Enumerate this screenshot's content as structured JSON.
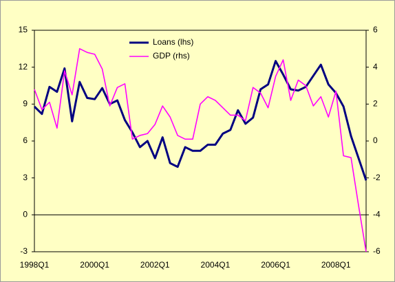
{
  "chart_data": {
    "type": "line",
    "categories": [
      "1998Q1",
      null,
      null,
      null,
      null,
      null,
      null,
      null,
      "2000Q1",
      null,
      null,
      null,
      null,
      null,
      null,
      null,
      "2002Q1",
      null,
      null,
      null,
      null,
      null,
      null,
      null,
      "2004Q1",
      null,
      null,
      null,
      null,
      null,
      null,
      null,
      "2006Q1",
      null,
      null,
      null,
      null,
      null,
      null,
      null,
      "2008Q1",
      null,
      null,
      null,
      null
    ],
    "series": [
      {
        "name": "Loans (lhs)",
        "color": "#000080",
        "axis": "y",
        "values": [
          8.8,
          8.2,
          10.4,
          10.0,
          11.9,
          7.6,
          10.8,
          9.5,
          9.4,
          10.3,
          9.0,
          9.3,
          7.7,
          6.7,
          5.5,
          6.0,
          4.6,
          6.3,
          4.2,
          3.9,
          5.5,
          5.2,
          5.2,
          5.7,
          5.7,
          6.6,
          6.9,
          8.5,
          7.4,
          7.9,
          10.2,
          10.6,
          12.5,
          11.4,
          10.2,
          10.1,
          10.4,
          11.3,
          12.2,
          10.6,
          9.9,
          8.8,
          6.4,
          4.6,
          2.8
        ]
      },
      {
        "name": "GDP (rhs)",
        "color": "#ff00ff",
        "axis": "y2",
        "values": [
          2.8,
          1.7,
          2.1,
          0.7,
          3.8,
          2.5,
          5.0,
          4.8,
          4.7,
          3.9,
          1.9,
          2.9,
          3.1,
          0.1,
          0.3,
          0.4,
          0.9,
          1.9,
          1.3,
          0.3,
          0.1,
          0.1,
          2.0,
          2.4,
          2.2,
          1.8,
          1.4,
          1.4,
          1.1,
          2.9,
          2.6,
          1.8,
          3.5,
          4.4,
          2.2,
          3.3,
          3.0,
          1.9,
          2.4,
          1.3,
          2.7,
          -0.8,
          -0.9,
          -3.5,
          -6.0
        ]
      }
    ],
    "ylim": [
      -3,
      15
    ],
    "yticks": [
      -3,
      0,
      3,
      6,
      9,
      12,
      15
    ],
    "y2lim": [
      -6,
      6
    ],
    "y2ticks": [
      -6,
      -4,
      -2,
      0,
      2,
      4,
      6
    ],
    "legend": "top"
  }
}
